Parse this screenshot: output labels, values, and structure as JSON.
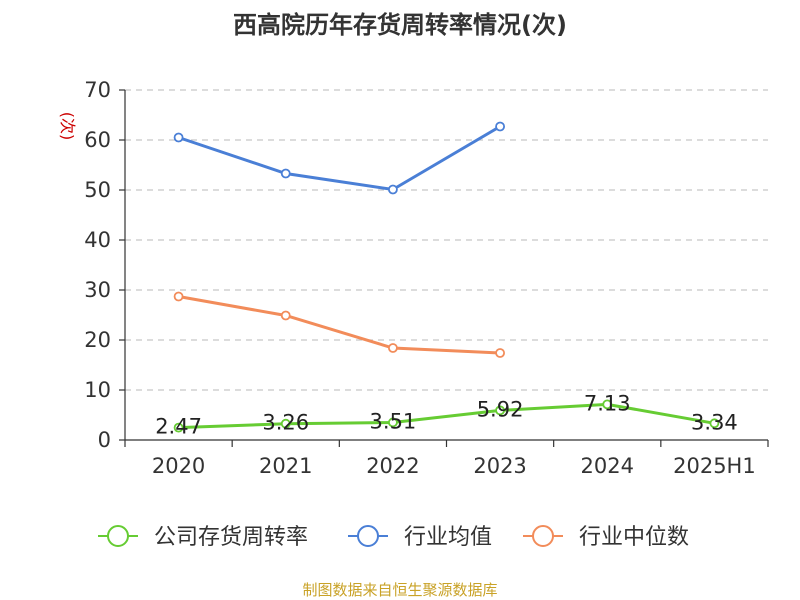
{
  "title": "西高院历年存货周转率情况(次)",
  "source": "制图数据来自恒生聚源数据库",
  "colors": {
    "company": "#66cc33",
    "industry_avg": "#4a7fd6",
    "industry_median": "#f28c5a",
    "unit": "#cc0000",
    "source": "#c9a227"
  },
  "chart_data": {
    "type": "line",
    "title": "西高院历年存货周转率情况(次)",
    "ylabel": "(次)",
    "xlabel": "",
    "categories": [
      "2020",
      "2021",
      "2022",
      "2023",
      "2024",
      "2025H1"
    ],
    "ylim": [
      0,
      70
    ],
    "yticks": [
      0,
      10,
      20,
      30,
      40,
      50,
      60,
      70
    ],
    "grid": true,
    "legend_position": "bottom",
    "series": [
      {
        "name": "公司存货周转率",
        "values": [
          2.47,
          3.26,
          3.51,
          5.92,
          7.13,
          3.34
        ],
        "labels": [
          "2.47",
          "3.26",
          "3.51",
          "5.92",
          "7.13",
          "3.34"
        ],
        "color": "#66cc33"
      },
      {
        "name": "行业均值",
        "values": [
          60.5,
          53.3,
          50.1,
          62.7,
          null,
          null
        ],
        "color": "#4a7fd6"
      },
      {
        "name": "行业中位数",
        "values": [
          28.7,
          24.9,
          18.4,
          17.4,
          null,
          null
        ],
        "color": "#f28c5a"
      }
    ]
  }
}
